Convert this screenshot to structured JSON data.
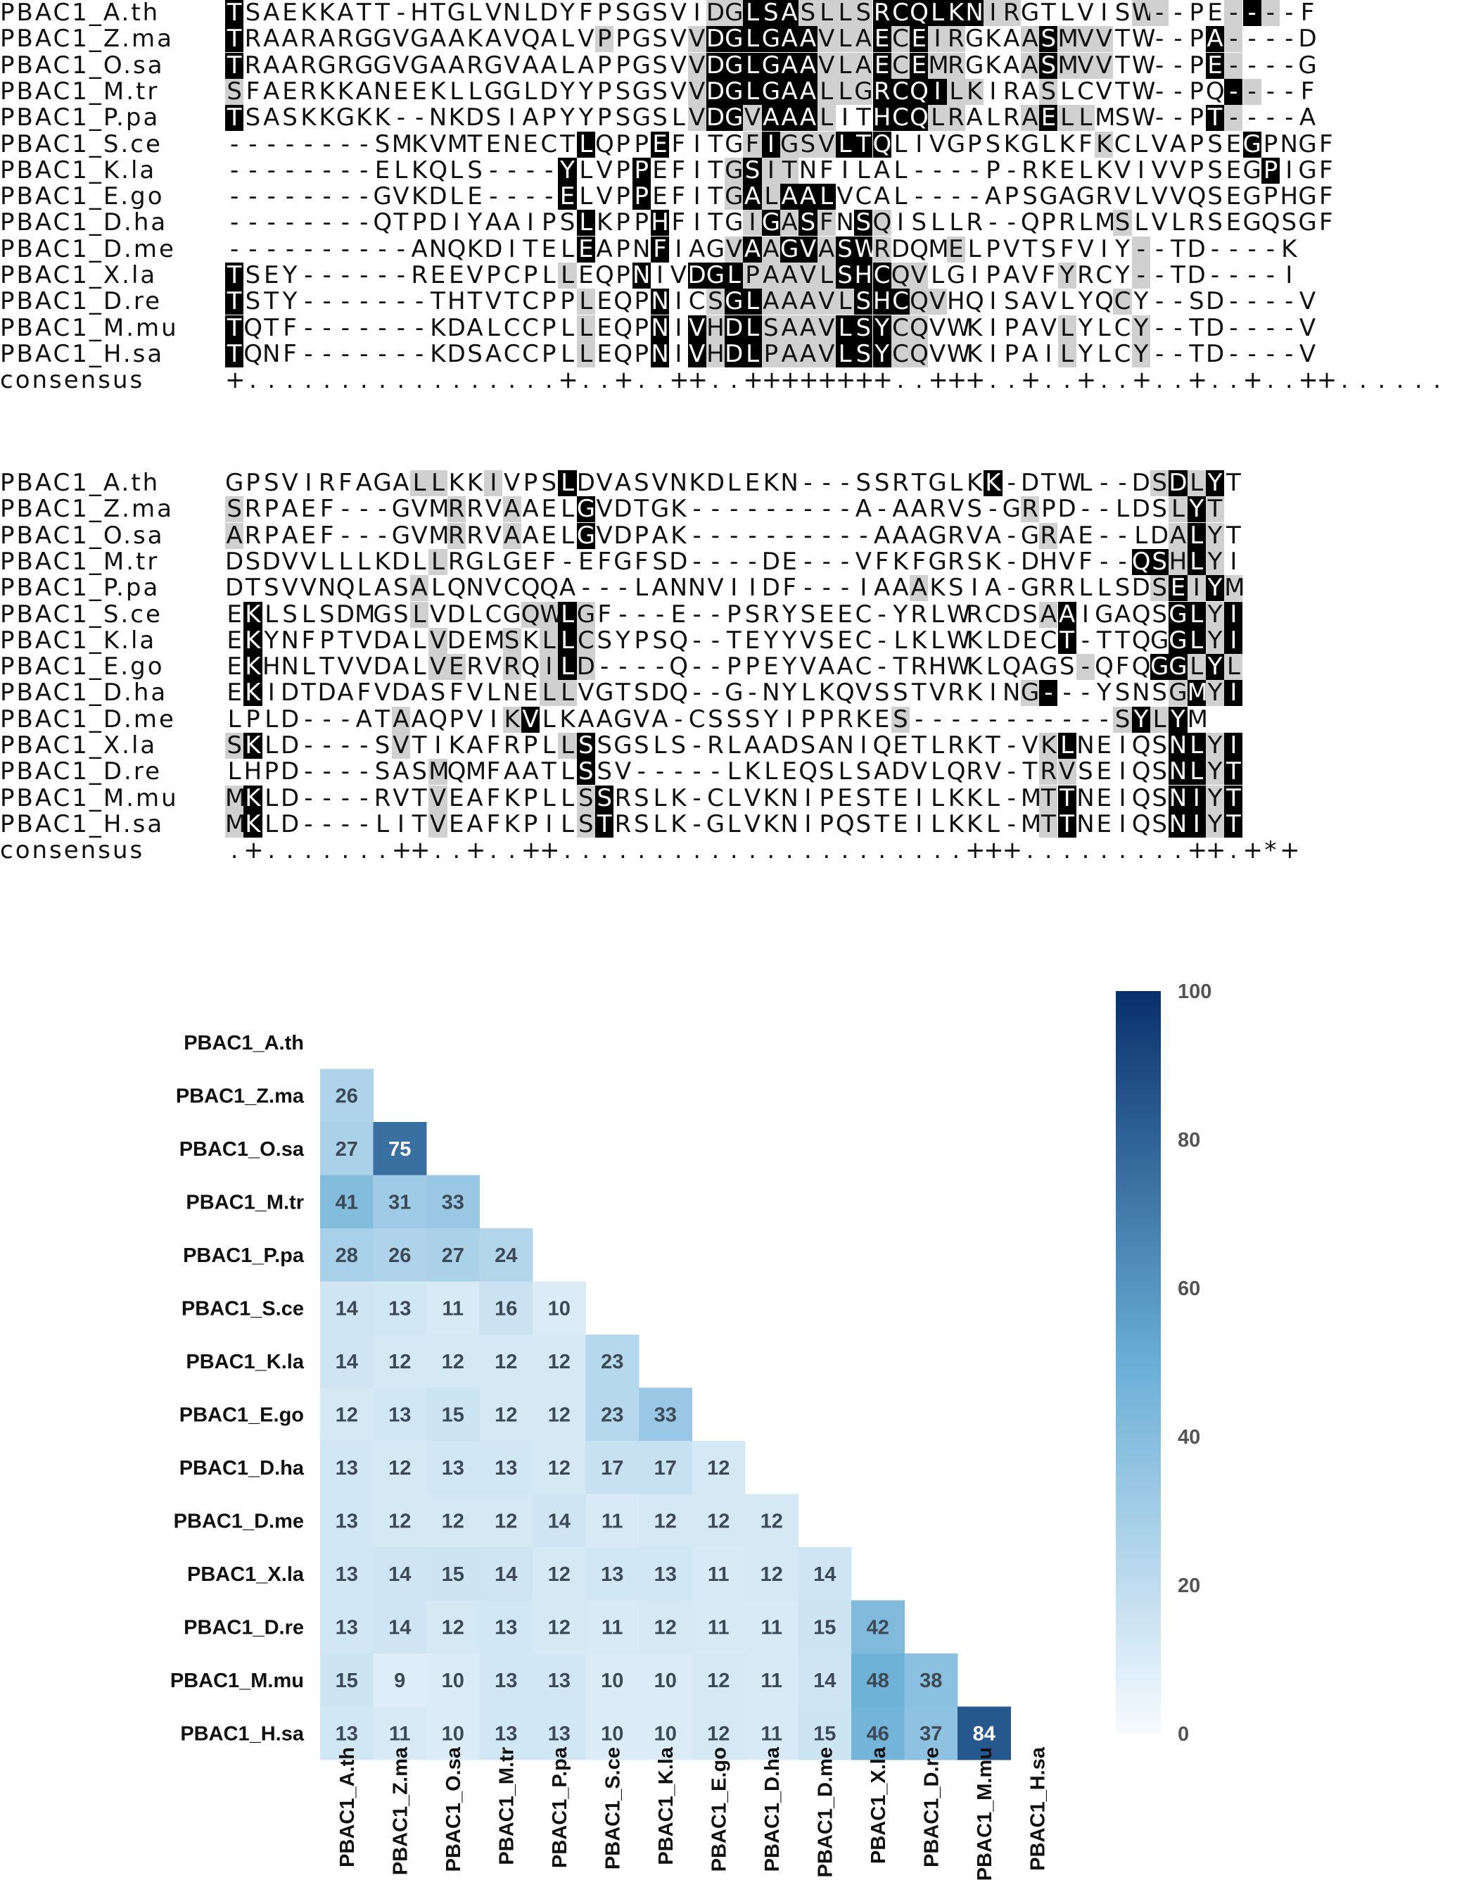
{
  "alignment_blocks": [
    {
      "rows": [
        {
          "name": "PBAC1_A.th",
          "seq": "TSAEKKATT-HTGLVNLDYFPSGSVIDGLSASLLSRCQLKNIRGTLVISW--PE----F",
          "marks": "b.........................ggbbbggggbbbbbbgg......gg...gbg....."
        },
        {
          "name": "PBAC1_Z.ma",
          "seq": "TRAARARGGVGAAKAVQALVPPGSVVDGLGAAVLAECEIRGKAASMVVTW--PA----D",
          "marks": "b...................g....gbbbbbbgggbgbgg...gbggg.....bg....."
        },
        {
          "name": "PBAC1_O.sa",
          "seq": "TRAARGRGGVGAARGVAALAPPGSVVDGLGAAVLAECEMRGKAASMVVTW--PE----G",
          "marks": "b........................gbbbbbbgggbgbgg...gbggg.....bg....."
        },
        {
          "name": "PBAC1_M.tr",
          "seq": "SFAERKKANEEKLLGGLDYYPSGSVVDGLGAALLGRCQILKIRASLCVTW--PQ----F",
          "marks": "g........................gbbbbbbgggbbbbgg...g.........bg....."
        },
        {
          "name": "PBAC1_P.pa",
          "seq": "TSASKKGKK--NKDSIAPYYPSGSLVDGVAAALITHCQLRALRAELLMSW--PT----A",
          "marks": "b........................gbbgbbbg..bbbgg...gbgg......bg....."
        },
        {
          "name": "PBAC1_S.ce",
          "seq": "--------SMKVMTENECTLQPPEFITGFIGSVLTQLIVGPSKGLKFKCLVAPSEGPNGF",
          "marks": "...................b...b....gbgggbbb...........g.......b....."
        },
        {
          "name": "PBAC1_K.la",
          "seq": "--------ELKQLS----YLVPPEFITGSITNFILAL----P-RKELKVIVVPSEGPIGF",
          "marks": "..................b...b....gbgg.........................b....."
        },
        {
          "name": "PBAC1_E.go",
          "seq": "--------GVKDLE----ELVPPEFITGALAALVCAL----APSGAGRVLVVQSEGPHGF",
          "marks": "..................b...b....gbgbbb.............................."
        },
        {
          "name": "PBAC1_D.ha",
          "seq": "--------QTPDIYAAIPSLKPPHFITGIGASFNSQISLLR--QPRLMSLVLRSEGQSGF",
          "marks": "...................b...b....gbgbg.bg............g.............."
        },
        {
          "name": "PBAC1_D.me",
          "seq": "----------ANQKDITELEAPNFIAGVAAGVASWRDQMELPVTSFVIY--TD----K",
          "marks": "...................b...b...gbgbbgbbg...g.........g............."
        },
        {
          "name": "PBAC1_X.la",
          "seq": "TSEY------REEVPCPLLEQPNIVDGLPAAVLSHCQVLGIPAVFYRCY--TD----I",
          "marks": "b.................g...b..bbbgggggbbbgg.......g...g............."
        },
        {
          "name": "PBAC1_D.re",
          "seq": "TSTY-------THTVTCPPLEQPNICSGLAAAVLSHCQVHQISAVLYQCY--SD----V",
          "marks": "b..................g...b..gbbgggggbbbgg.........g............."
        },
        {
          "name": "PBAC1_M.mu",
          "seq": "TQTF-------KDALCCPLLEQPNIVHDLSAAVLSYCQVWKIPAVLYLCY--TD----V",
          "marks": "b..................g...b.bgbbggggbbbgg.......g...g............."
        },
        {
          "name": "PBAC1_H.sa",
          "seq": "TQNF-------KDSACCPLLEQPNIVHDLPAAVLSYCQVWKIPAILYLCY--TD----V",
          "marks": "b..................g...b.bgbbggggbbbgg.......g...g............."
        },
        {
          "name": "consensus",
          "seq": "+.................+..+..++..++++++++..+++..+..+..+..+..+..++......",
          "marks": ""
        }
      ]
    },
    {
      "rows": [
        {
          "name": "PBAC1_A.th",
          "seq": "GPSVIRFAGALLKKIVPSLDVASVNKDLEKN---SSRTGLKK-DTWL--DSDLYT",
          "marks": "..........gg..g...b......................b........gbgb"
        },
        {
          "name": "PBAC1_Z.ma",
          "seq": "SRPAEF---GVMRRVAAELGVDTGK---------A-AARVS-GRPD--LDSLYT",
          "marks": "g...........g..g...b.......................g.......gbg."
        },
        {
          "name": "PBAC1_O.sa",
          "seq": "ARPAEF---GVMRRVAAELGVDPAK----------AAAGRVA-GRAE--LDALYT",
          "marks": "g...........g..g...b........................g......gbg."
        },
        {
          "name": "PBAC1_M.tr",
          "seq": "DSDVVLLLKDLLRGLGEF-EFGFSD----DE---VFKFGRSK-DHVF--QSHLYI",
          "marks": "...........g.....................................bbgbg"
        },
        {
          "name": "PBAC1_P.pa",
          "seq": "DTSVVNQLASALQNVCQQA---LANNVIIDF---IAAAKSIA-GRRLLSDSEIYM",
          "marks": "..........g..........................g............gbgbg"
        },
        {
          "name": "PBAC1_S.ce",
          "seq": "EKLSLSDMGSLVDLCGQWLGF---E--PSRYSEEC-YRLWRCDSAAIGAQSGLYI",
          "marks": ".b........g.....ggbg........................gb.....bbgbg"
        },
        {
          "name": "PBAC1_K.la",
          "seq": "EKYNFPTVDALVDEMSKLLCSYPSQ--TEYYVSEC-LKLWKLDECT-TTQGGLYI",
          "marks": ".b.........g...g.gbg.........................b.....bbgbg"
        },
        {
          "name": "PBAC1_E.go",
          "seq": "EKHNLTVVDALVERVRQILD----Q--PPEYVAAC-TRHWKLQAGS-QFQGGLYL",
          "marks": ".b.........gg..g.gbg..........................g...bbgbg"
        },
        {
          "name": "PBAC1_D.ha",
          "seq": "EKIDTDAFVDASFVLNELLVGTSDQ--G-NYLKQVSSTVRKING---YSNSGMYI",
          "marks": ".b...............gg........................gb......gbgbg"
        },
        {
          "name": "PBAC1_D.me",
          "seq": "LPLD---ATAAQPVIKVLKAAGVA-CSSSYIPPRKES-----------SYLYM",
          "marks": ".........g.....gb...................g...........gbgb"
        },
        {
          "name": "PBAC1_X.la",
          "seq": "SKLD----SVTIKAFRPLLSSGSLS-RLAADSANIQETLRKT-VKLNEIQSNLYI",
          "marks": "gb.......g........gb........................gb.....bbgbg"
        },
        {
          "name": "PBAC1_D.re",
          "seq": "LHPD----SASMQMFAATLSSV-----LKLEQSLSADVLQRV-TRVSEIQSNLYT",
          "marks": "...........g.......b........................gg.....bbgb."
        },
        {
          "name": "PBAC1_M.mu",
          "seq": "MKLD----RVTVEAFKPLLSSRSLK-CLVKNIPESTEILKKL-MTTNEIQSNIYT",
          "marks": "gb.........g.......gb.......................gb.....bbgb."
        },
        {
          "name": "PBAC1_H.sa",
          "seq": "MKLD----LITVEAFKPILSTRSLK-GLVKNIPQSTEILKKL-MTTNEIQSNIYT",
          "marks": "gb.........g.......gb.......................gb.....bbgb."
        },
        {
          "name": "consensus",
          "seq": ".+.......++..+..++......................+++.........++.+*+",
          "marks": ""
        }
      ]
    }
  ],
  "chart_data": {
    "type": "heatmap",
    "rows": [
      "PBAC1_A.th",
      "PBAC1_Z.ma",
      "PBAC1_O.sa",
      "PBAC1_M.tr",
      "PBAC1_P.pa",
      "PBAC1_S.ce",
      "PBAC1_K.la",
      "PBAC1_E.go",
      "PBAC1_D.ha",
      "PBAC1_D.me",
      "PBAC1_X.la",
      "PBAC1_D.re",
      "PBAC1_M.mu",
      "PBAC1_H.sa"
    ],
    "columns": [
      "PBAC1_A.th",
      "PBAC1_Z.ma",
      "PBAC1_O.sa",
      "PBAC1_M.tr",
      "PBAC1_P.pa",
      "PBAC1_S.ce",
      "PBAC1_K.la",
      "PBAC1_E.go",
      "PBAC1_D.ha",
      "PBAC1_D.me",
      "PBAC1_X.la",
      "PBAC1_D.re",
      "PBAC1_M.mu",
      "PBAC1_H.sa"
    ],
    "lower_triangle": [
      [],
      [
        26
      ],
      [
        27,
        75
      ],
      [
        41,
        31,
        33
      ],
      [
        28,
        26,
        27,
        24
      ],
      [
        14,
        13,
        11,
        16,
        10
      ],
      [
        14,
        12,
        12,
        12,
        12,
        23
      ],
      [
        12,
        13,
        15,
        12,
        12,
        23,
        33
      ],
      [
        13,
        12,
        13,
        13,
        12,
        17,
        17,
        12
      ],
      [
        13,
        12,
        12,
        12,
        14,
        11,
        12,
        12,
        12
      ],
      [
        13,
        14,
        15,
        14,
        12,
        13,
        13,
        11,
        12,
        14
      ],
      [
        13,
        14,
        12,
        13,
        12,
        11,
        12,
        11,
        11,
        15,
        42
      ],
      [
        15,
        9,
        10,
        13,
        13,
        10,
        10,
        12,
        11,
        14,
        48,
        38
      ],
      [
        13,
        11,
        10,
        13,
        13,
        10,
        10,
        12,
        11,
        15,
        46,
        37,
        84
      ]
    ],
    "colorbar": {
      "min": 0,
      "max": 100,
      "ticks": [
        0,
        20,
        40,
        60,
        80,
        100
      ]
    },
    "colors": {
      "low": "#f7fbff",
      "mid": "#6aaed6",
      "high": "#08306b"
    }
  }
}
